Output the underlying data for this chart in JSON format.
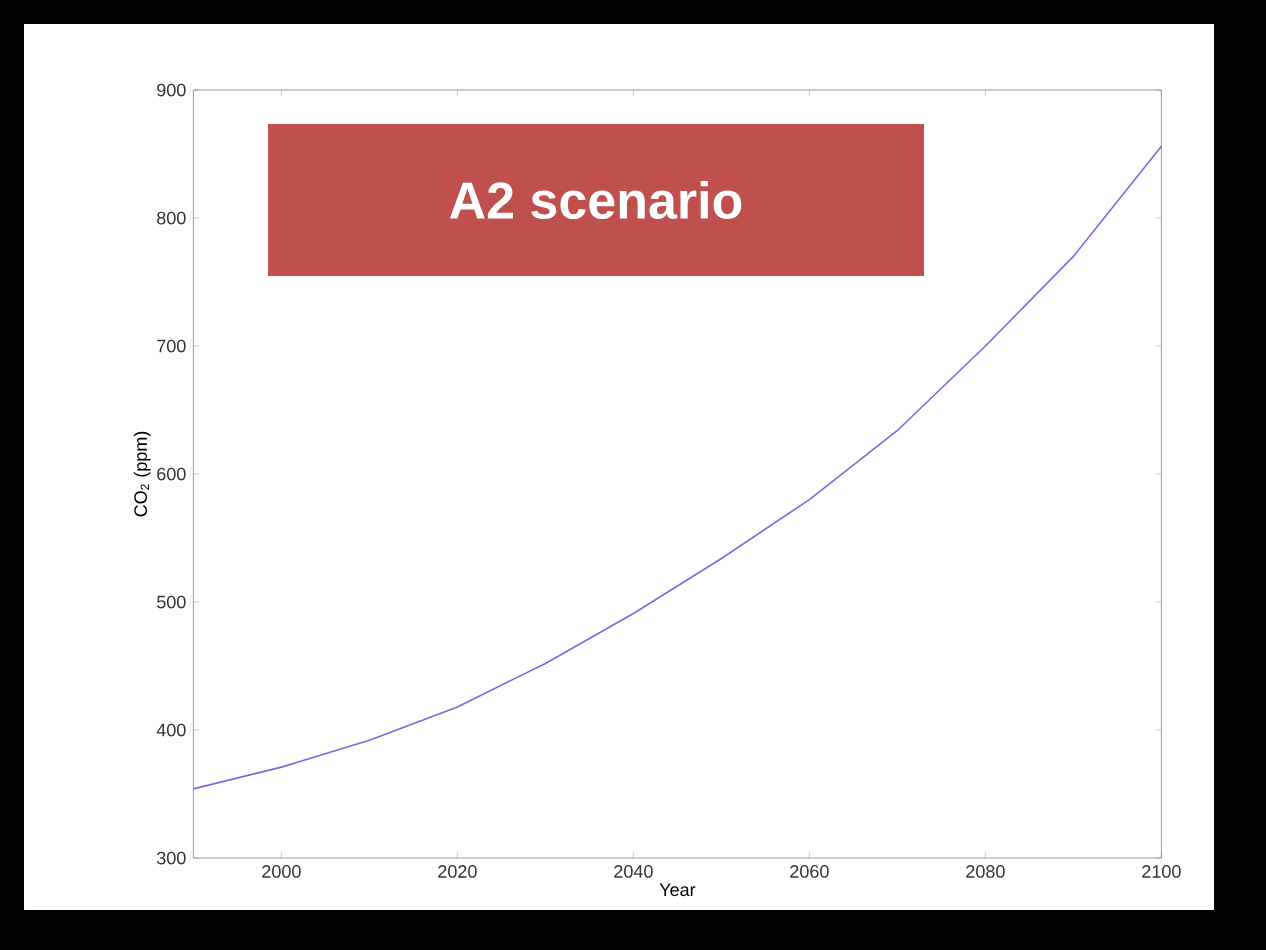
{
  "chart_data": {
    "type": "line",
    "title": "A2 scenario",
    "xlabel": "Year",
    "ylabel": "CO$_{2}$ (ppm)",
    "x": [
      1990,
      2000,
      2010,
      2020,
      2030,
      2040,
      2050,
      2060,
      2070,
      2080,
      2090,
      2100
    ],
    "series": [
      {
        "color": "#6f6fe0",
        "values": [
          354,
          371,
          392,
          418,
          452,
          491,
          534,
          580,
          634,
          700,
          770,
          856
        ]
      }
    ],
    "xlim": [
      1990,
      2100
    ],
    "xticks": [
      2000,
      2020,
      2040,
      2060,
      2080,
      2100
    ],
    "ylim": [
      300,
      900
    ],
    "yticks": [
      300,
      400,
      500,
      600,
      700,
      800,
      900
    ],
    "marker": "none",
    "line_style": "solid"
  }
}
